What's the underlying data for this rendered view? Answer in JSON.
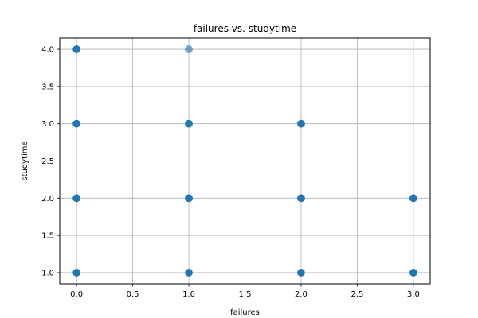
{
  "chart_data": {
    "type": "scatter",
    "title": "failures vs. studytime",
    "xlabel": "failures",
    "ylabel": "studytime",
    "xlim": [
      -0.15,
      3.15
    ],
    "ylim": [
      0.85,
      4.15
    ],
    "xticks": [
      0.0,
      0.5,
      1.0,
      1.5,
      2.0,
      2.5,
      3.0
    ],
    "xtick_labels": [
      "0.0",
      "0.5",
      "1.0",
      "1.5",
      "2.0",
      "2.5",
      "3.0"
    ],
    "yticks": [
      1.0,
      1.5,
      2.0,
      2.5,
      3.0,
      3.5,
      4.0
    ],
    "ytick_labels": [
      "1.0",
      "1.5",
      "2.0",
      "2.5",
      "3.0",
      "3.5",
      "4.0"
    ],
    "grid": true,
    "color": "#1f77b4",
    "points": [
      {
        "x": 0,
        "y": 4,
        "opacity": 1.0
      },
      {
        "x": 1,
        "y": 4,
        "opacity": 0.6
      },
      {
        "x": 0,
        "y": 3,
        "opacity": 1.0
      },
      {
        "x": 1,
        "y": 3,
        "opacity": 1.0
      },
      {
        "x": 2,
        "y": 3,
        "opacity": 1.0
      },
      {
        "x": 0,
        "y": 2,
        "opacity": 1.0
      },
      {
        "x": 1,
        "y": 2,
        "opacity": 1.0
      },
      {
        "x": 2,
        "y": 2,
        "opacity": 1.0
      },
      {
        "x": 3,
        "y": 2,
        "opacity": 1.0
      },
      {
        "x": 0,
        "y": 1,
        "opacity": 1.0
      },
      {
        "x": 1,
        "y": 1,
        "opacity": 1.0
      },
      {
        "x": 2,
        "y": 1,
        "opacity": 1.0
      },
      {
        "x": 3,
        "y": 1,
        "opacity": 1.0
      }
    ]
  }
}
